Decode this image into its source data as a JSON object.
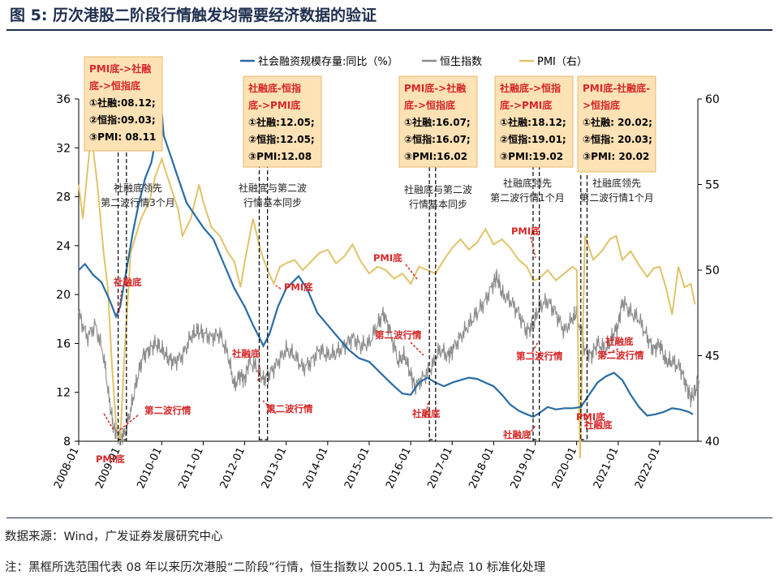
{
  "figure": {
    "title": "图 5:   历次港股二阶段行情触发均需要经济数据的验证",
    "source": "数据来源：Wind，广发证券发展研究中心",
    "note": "注：黑框所选范围代表 08 年以来历次港股“二阶段”行情，恒生指数以 2005.1.1 为起点 10 标准化处理"
  },
  "colors": {
    "tsf": "#2a6ca3",
    "hsi": "#8c8c8c",
    "pmi": "#e0c36a",
    "annotation_red": "#d62728",
    "box_fill": "#fde2b5",
    "title": "#1f2f4f"
  },
  "chart_data": {
    "type": "line",
    "legend": {
      "position": "top",
      "entries": [
        "社会融资规模存量:同比（%）",
        "恒生指数",
        "PMI（右）"
      ]
    },
    "x_ticks": [
      "2008-01",
      "2009-01",
      "2010-01",
      "2011-01",
      "2012-01",
      "2013-01",
      "2014-01",
      "2015-01",
      "2016-01",
      "2017-01",
      "2018-01",
      "2019-01",
      "2020-01",
      "2021-01",
      "2022-01"
    ],
    "y_left": {
      "min": 8,
      "max": 36,
      "ticks": [
        "8",
        "12",
        "16",
        "20",
        "24",
        "28",
        "32",
        "36"
      ]
    },
    "y_right": {
      "min": 40,
      "max": 60,
      "ticks": [
        "40",
        "45",
        "50",
        "55",
        "60"
      ]
    },
    "grid": false,
    "series": [
      {
        "name": "社会融资规模存量:同比（%）",
        "axis": "left",
        "points": [
          [
            2008.0,
            22.0
          ],
          [
            2008.15,
            22.5
          ],
          [
            2008.35,
            21.6
          ],
          [
            2008.55,
            21.0
          ],
          [
            2008.75,
            19.5
          ],
          [
            2008.9,
            18.2
          ],
          [
            2009.0,
            19.0
          ],
          [
            2009.15,
            22.0
          ],
          [
            2009.3,
            25.0
          ],
          [
            2009.45,
            27.5
          ],
          [
            2009.6,
            29.5
          ],
          [
            2009.75,
            30.8
          ],
          [
            2009.9,
            33.5
          ],
          [
            2010.0,
            35.0
          ],
          [
            2010.05,
            33.0
          ],
          [
            2010.2,
            31.5
          ],
          [
            2010.4,
            29.5
          ],
          [
            2010.6,
            27.5
          ],
          [
            2010.8,
            26.5
          ],
          [
            2011.0,
            25.5
          ],
          [
            2011.25,
            24.5
          ],
          [
            2011.5,
            22.5
          ],
          [
            2011.75,
            20.5
          ],
          [
            2012.0,
            19.0
          ],
          [
            2012.2,
            17.5
          ],
          [
            2012.35,
            16.5
          ],
          [
            2012.45,
            15.8
          ],
          [
            2012.6,
            16.8
          ],
          [
            2012.8,
            19.0
          ],
          [
            2013.0,
            20.5
          ],
          [
            2013.15,
            21.0
          ],
          [
            2013.3,
            21.5
          ],
          [
            2013.5,
            20.5
          ],
          [
            2013.75,
            18.5
          ],
          [
            2014.0,
            17.5
          ],
          [
            2014.25,
            16.5
          ],
          [
            2014.5,
            15.5
          ],
          [
            2014.75,
            14.8
          ],
          [
            2015.0,
            14.5
          ],
          [
            2015.3,
            13.5
          ],
          [
            2015.6,
            12.5
          ],
          [
            2015.8,
            11.9
          ],
          [
            2016.0,
            11.8
          ],
          [
            2016.2,
            12.8
          ],
          [
            2016.4,
            13.2
          ],
          [
            2016.6,
            12.8
          ],
          [
            2016.8,
            12.5
          ],
          [
            2017.0,
            12.8
          ],
          [
            2017.2,
            13.0
          ],
          [
            2017.4,
            13.2
          ],
          [
            2017.6,
            13.1
          ],
          [
            2017.8,
            12.8
          ],
          [
            2018.0,
            12.5
          ],
          [
            2018.2,
            11.8
          ],
          [
            2018.4,
            11.0
          ],
          [
            2018.6,
            10.5
          ],
          [
            2018.8,
            10.2
          ],
          [
            2018.95,
            10.0
          ],
          [
            2019.1,
            10.3
          ],
          [
            2019.3,
            10.8
          ],
          [
            2019.5,
            10.6
          ],
          [
            2019.7,
            10.7
          ],
          [
            2019.9,
            10.7
          ],
          [
            2020.1,
            10.8
          ],
          [
            2020.3,
            11.8
          ],
          [
            2020.5,
            12.8
          ],
          [
            2020.7,
            13.3
          ],
          [
            2020.9,
            13.6
          ],
          [
            2021.1,
            13.0
          ],
          [
            2021.3,
            11.8
          ],
          [
            2021.5,
            10.8
          ],
          [
            2021.7,
            10.1
          ],
          [
            2021.9,
            10.2
          ],
          [
            2022.1,
            10.4
          ],
          [
            2022.3,
            10.7
          ],
          [
            2022.5,
            10.6
          ],
          [
            2022.7,
            10.4
          ],
          [
            2022.8,
            10.2
          ]
        ]
      },
      {
        "name": "恒生指数",
        "axis": "left",
        "points": [
          [
            2008.0,
            18.5
          ],
          [
            2008.2,
            16.5
          ],
          [
            2008.4,
            17.5
          ],
          [
            2008.6,
            15.0
          ],
          [
            2008.75,
            11.0
          ],
          [
            2008.85,
            9.0
          ],
          [
            2008.95,
            8.6
          ],
          [
            2009.1,
            8.5
          ],
          [
            2009.25,
            10.5
          ],
          [
            2009.4,
            13.0
          ],
          [
            2009.55,
            15.0
          ],
          [
            2009.7,
            15.5
          ],
          [
            2009.85,
            16.0
          ],
          [
            2010.0,
            15.5
          ],
          [
            2010.15,
            14.8
          ],
          [
            2010.3,
            14.5
          ],
          [
            2010.5,
            15.0
          ],
          [
            2010.7,
            16.5
          ],
          [
            2010.85,
            17.0
          ],
          [
            2011.0,
            16.8
          ],
          [
            2011.2,
            16.5
          ],
          [
            2011.4,
            16.8
          ],
          [
            2011.6,
            15.0
          ],
          [
            2011.75,
            12.5
          ],
          [
            2011.9,
            13.5
          ],
          [
            2012.0,
            13.0
          ],
          [
            2012.1,
            14.5
          ],
          [
            2012.3,
            14.0
          ],
          [
            2012.45,
            13.0
          ],
          [
            2012.6,
            13.5
          ],
          [
            2012.8,
            14.5
          ],
          [
            2013.0,
            15.5
          ],
          [
            2013.2,
            15.0
          ],
          [
            2013.4,
            14.0
          ],
          [
            2013.6,
            14.5
          ],
          [
            2013.8,
            15.5
          ],
          [
            2014.0,
            15.0
          ],
          [
            2014.2,
            15.2
          ],
          [
            2014.4,
            15.8
          ],
          [
            2014.6,
            16.5
          ],
          [
            2014.8,
            15.8
          ],
          [
            2015.0,
            16.0
          ],
          [
            2015.2,
            17.5
          ],
          [
            2015.35,
            18.5
          ],
          [
            2015.5,
            17.0
          ],
          [
            2015.7,
            14.5
          ],
          [
            2015.85,
            15.0
          ],
          [
            2016.0,
            13.5
          ],
          [
            2016.1,
            12.5
          ],
          [
            2016.3,
            13.2
          ],
          [
            2016.5,
            14.0
          ],
          [
            2016.7,
            15.5
          ],
          [
            2016.9,
            15.0
          ],
          [
            2017.0,
            15.5
          ],
          [
            2017.2,
            16.5
          ],
          [
            2017.4,
            17.5
          ],
          [
            2017.6,
            18.5
          ],
          [
            2017.8,
            19.5
          ],
          [
            2018.0,
            21.0
          ],
          [
            2018.08,
            21.5
          ],
          [
            2018.2,
            20.0
          ],
          [
            2018.4,
            19.5
          ],
          [
            2018.6,
            18.5
          ],
          [
            2018.8,
            17.0
          ],
          [
            2018.95,
            17.5
          ],
          [
            2019.1,
            19.0
          ],
          [
            2019.3,
            19.5
          ],
          [
            2019.5,
            18.5
          ],
          [
            2019.7,
            17.0
          ],
          [
            2019.9,
            18.0
          ],
          [
            2020.0,
            18.5
          ],
          [
            2020.2,
            15.5
          ],
          [
            2020.35,
            15.0
          ],
          [
            2020.5,
            16.0
          ],
          [
            2020.7,
            15.5
          ],
          [
            2020.85,
            16.5
          ],
          [
            2021.0,
            17.5
          ],
          [
            2021.1,
            19.5
          ],
          [
            2021.3,
            18.5
          ],
          [
            2021.5,
            18.0
          ],
          [
            2021.7,
            16.5
          ],
          [
            2021.85,
            15.5
          ],
          [
            2022.0,
            16.0
          ],
          [
            2022.15,
            14.5
          ],
          [
            2022.3,
            14.5
          ],
          [
            2022.5,
            14.0
          ],
          [
            2022.65,
            12.5
          ],
          [
            2022.75,
            11.5
          ],
          [
            2022.85,
            12.0
          ],
          [
            2022.95,
            13.0
          ]
        ]
      },
      {
        "name": "PMI（右）",
        "axis": "right",
        "points": [
          [
            2008.0,
            55.0
          ],
          [
            2008.1,
            53.0
          ],
          [
            2008.3,
            58.0
          ],
          [
            2008.45,
            55.0
          ],
          [
            2008.6,
            51.0
          ],
          [
            2008.7,
            49.0
          ],
          [
            2008.8,
            44.5
          ],
          [
            2008.9,
            41.0
          ],
          [
            2009.0,
            40.0
          ],
          [
            2009.1,
            45.0
          ],
          [
            2009.25,
            51.0
          ],
          [
            2009.5,
            53.0
          ],
          [
            2009.7,
            54.0
          ],
          [
            2009.85,
            55.5
          ],
          [
            2010.0,
            56.5
          ],
          [
            2010.2,
            55.0
          ],
          [
            2010.4,
            53.5
          ],
          [
            2010.5,
            52.0
          ],
          [
            2010.7,
            53.0
          ],
          [
            2010.9,
            55.0
          ],
          [
            2011.0,
            54.0
          ],
          [
            2011.2,
            52.5
          ],
          [
            2011.4,
            52.0
          ],
          [
            2011.6,
            51.0
          ],
          [
            2011.75,
            50.5
          ],
          [
            2011.9,
            49.0
          ],
          [
            2012.0,
            50.5
          ],
          [
            2012.2,
            53.0
          ],
          [
            2012.4,
            51.0
          ],
          [
            2012.55,
            50.0
          ],
          [
            2012.7,
            49.2
          ],
          [
            2012.85,
            50.2
          ],
          [
            2013.0,
            50.4
          ],
          [
            2013.2,
            50.6
          ],
          [
            2013.4,
            50.0
          ],
          [
            2013.6,
            50.5
          ],
          [
            2013.8,
            51.0
          ],
          [
            2014.0,
            51.2
          ],
          [
            2014.2,
            50.4
          ],
          [
            2014.4,
            50.8
          ],
          [
            2014.6,
            51.5
          ],
          [
            2014.8,
            50.5
          ],
          [
            2015.0,
            49.8
          ],
          [
            2015.2,
            50.2
          ],
          [
            2015.4,
            50.0
          ],
          [
            2015.6,
            49.5
          ],
          [
            2015.8,
            49.8
          ],
          [
            2016.0,
            49.2
          ],
          [
            2016.2,
            50.2
          ],
          [
            2016.4,
            50.0
          ],
          [
            2016.6,
            49.8
          ],
          [
            2016.8,
            50.6
          ],
          [
            2017.0,
            51.3
          ],
          [
            2017.2,
            51.8
          ],
          [
            2017.4,
            51.2
          ],
          [
            2017.6,
            51.6
          ],
          [
            2017.8,
            52.4
          ],
          [
            2018.0,
            51.5
          ],
          [
            2018.2,
            51.8
          ],
          [
            2018.4,
            51.3
          ],
          [
            2018.6,
            50.6
          ],
          [
            2018.8,
            50.2
          ],
          [
            2018.95,
            49.4
          ],
          [
            2019.1,
            49.5
          ],
          [
            2019.3,
            50.0
          ],
          [
            2019.5,
            49.4
          ],
          [
            2019.7,
            49.8
          ],
          [
            2019.9,
            50.2
          ],
          [
            2020.0,
            50.0
          ],
          [
            2020.08,
            39.0
          ],
          [
            2020.2,
            52.0
          ],
          [
            2020.4,
            50.6
          ],
          [
            2020.6,
            51.1
          ],
          [
            2020.8,
            51.8
          ],
          [
            2020.95,
            52.0
          ],
          [
            2021.1,
            50.6
          ],
          [
            2021.3,
            51.1
          ],
          [
            2021.5,
            50.3
          ],
          [
            2021.7,
            49.6
          ],
          [
            2021.85,
            50.1
          ],
          [
            2022.0,
            50.2
          ],
          [
            2022.15,
            49.0
          ],
          [
            2022.3,
            47.4
          ],
          [
            2022.45,
            50.2
          ],
          [
            2022.6,
            49.0
          ],
          [
            2022.75,
            49.2
          ],
          [
            2022.85,
            48.0
          ]
        ]
      }
    ],
    "info_boxes": [
      {
        "lines": [
          "PMI底->社融",
          "底->恒指底",
          "①社融:08.12;",
          "②恒指:09.03;",
          "③PMI: 08.11"
        ]
      },
      {
        "lines": [
          "社融底-恒指",
          "底->PMI底",
          "①社融:12.05;",
          "②恒指:12.05;",
          "③PMI:12.08"
        ]
      },
      {
        "lines": [
          "PMI底->社融",
          "底->恒指底",
          "①社融:16.07;",
          "②恒指:16.07;",
          "③PMI:16.02"
        ]
      },
      {
        "lines": [
          "社融底->恒指",
          "底->PMI底",
          "①社融:18.12;",
          "②恒指:19.01;",
          "③PMI:19.02"
        ]
      },
      {
        "lines": [
          "PMI底-社融底-",
          ">恒指底",
          "①社融: 20.02;",
          "②恒指: 20.03;",
          "③PMI: 20.02"
        ]
      }
    ],
    "phase_labels": [
      {
        "lines": [
          "社融底领先",
          "第二波行情3个月"
        ]
      },
      {
        "lines": [
          "社融底与第二波",
          "行情基本同步"
        ]
      },
      {
        "lines": [
          "社融底与第二波",
          "行情基本同步"
        ]
      },
      {
        "lines": [
          "社融底领先",
          "第二波行情1个月"
        ]
      },
      {
        "lines": [
          "社融底领先",
          "第二波行情1个月"
        ]
      }
    ],
    "annotations": [
      "社融底",
      "第二波行情",
      "PMI底",
      "社融底",
      "第二波行情",
      "PMI底",
      "PMI底",
      "第二波行情",
      "社融底",
      "PMI底",
      "第二波行情",
      "社融底",
      "社融底",
      "第二波行情",
      "PMI底",
      "社融底"
    ],
    "bracket_ranges": [
      [
        2008.95,
        2009.15
      ],
      [
        2012.35,
        2012.55
      ],
      [
        2016.45,
        2016.6
      ],
      [
        2018.95,
        2019.1
      ],
      [
        2020.1,
        2020.25
      ]
    ]
  }
}
